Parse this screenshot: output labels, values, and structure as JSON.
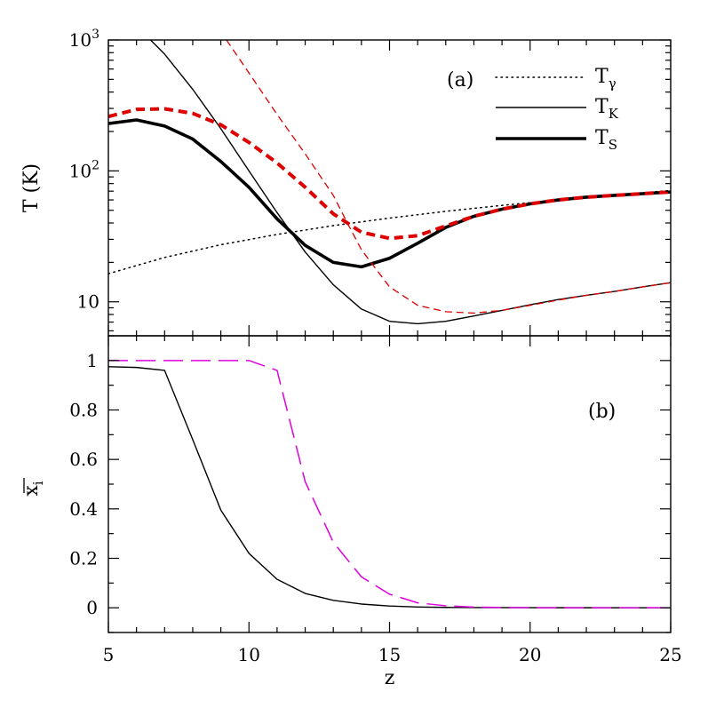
{
  "chart_data": [
    {
      "type": "line",
      "panel_label": "(a)",
      "xlabel": "z",
      "ylabel": "T  (K)",
      "xlim": [
        5,
        25
      ],
      "ylim": [
        5.5,
        1000
      ],
      "yscale": "log",
      "xticks": [
        5,
        10,
        15,
        20,
        25
      ],
      "yticks": [
        {
          "value": 10,
          "label": "10",
          "sup": ""
        },
        {
          "value": 100,
          "label": "10",
          "sup": "2"
        },
        {
          "value": 1000,
          "label": "10",
          "sup": "3"
        }
      ],
      "legend": {
        "position": "top-right",
        "entries": [
          {
            "main": "T",
            "sub": "γ",
            "style": "dotted"
          },
          {
            "main": "T",
            "sub": "K",
            "style": "thin"
          },
          {
            "main": "T",
            "sub": "S",
            "style": "thick"
          }
        ]
      },
      "series": [
        {
          "key": "T_gamma",
          "style": "dotted",
          "color": "#000000",
          "x": [
            5,
            7,
            9,
            11,
            13,
            15,
            17,
            19,
            21,
            23,
            25
          ],
          "y": [
            16.4,
            21.8,
            27.3,
            32.7,
            38.2,
            43.6,
            49.1,
            54.5,
            60.0,
            65.4,
            70.9
          ]
        },
        {
          "key": "T_K",
          "style": "thin",
          "color": "#000000",
          "x": [
            6.5,
            7,
            8,
            9,
            10,
            11,
            12,
            13,
            14,
            15,
            16,
            17,
            18,
            19,
            20,
            21,
            22,
            23,
            24,
            25
          ],
          "y": [
            1000,
            780,
            420,
            210,
            100,
            48,
            24,
            13.5,
            8.8,
            7.1,
            6.8,
            7.1,
            7.8,
            8.6,
            9.5,
            10.4,
            11.2,
            12.0,
            13.0,
            14.0
          ]
        },
        {
          "key": "T_S",
          "style": "thick",
          "color": "#000000",
          "x": [
            5,
            6,
            7,
            8,
            9,
            10,
            11,
            12,
            13,
            14,
            15,
            16,
            17,
            18,
            19,
            20,
            21,
            22,
            23,
            24,
            25
          ],
          "y": [
            230,
            245,
            220,
            175,
            118,
            75,
            43,
            27,
            20,
            18.5,
            21.5,
            28,
            37,
            45,
            51,
            56,
            60,
            63,
            65,
            67,
            69
          ]
        },
        {
          "key": "T_K_red",
          "style": "thin-dashed",
          "color": "#dd0000",
          "x": [
            13.5,
            14,
            15,
            16,
            17,
            18,
            19,
            20,
            21,
            22,
            23,
            24,
            25
          ],
          "y": [
            40,
            25,
            13,
            9.4,
            8.4,
            8.2,
            8.6,
            9.4,
            10.3,
            11.2,
            12.0,
            13.0,
            14.0
          ],
          "x_upper": [
            9.2,
            10,
            11,
            12,
            13,
            13.5
          ],
          "y_upper": [
            1000,
            560,
            270,
            135,
            65,
            40
          ]
        },
        {
          "key": "T_S_red",
          "style": "thick-dashed",
          "color": "#dd0000",
          "x": [
            5,
            6,
            7,
            8,
            9,
            10,
            11,
            12,
            13,
            14,
            15,
            16,
            17,
            18,
            19,
            20,
            21,
            22,
            23,
            24,
            25
          ],
          "y": [
            260,
            295,
            298,
            275,
            225,
            165,
            115,
            75,
            47,
            34,
            30.5,
            32,
            38,
            45,
            51,
            56,
            60,
            63,
            65,
            67,
            69
          ]
        }
      ]
    },
    {
      "type": "line",
      "panel_label": "(b)",
      "xlabel": "z",
      "ylabel": "x",
      "ylabel_sub": "i",
      "xlim": [
        5,
        25
      ],
      "ylim": [
        -0.1,
        1.1
      ],
      "xticks": [
        5,
        10,
        15,
        20,
        25
      ],
      "yticks": [
        0,
        0.2,
        0.4,
        0.6,
        0.8,
        1
      ],
      "ytick_labels": [
        "0",
        "0.2",
        "0.4",
        "0.6",
        "0.8",
        "1"
      ],
      "series": [
        {
          "key": "x_black",
          "style": "thin",
          "color": "#000000",
          "x": [
            5,
            6,
            7,
            8,
            9,
            10,
            11,
            12,
            13,
            14,
            15,
            16,
            17,
            18,
            20,
            25
          ],
          "y": [
            0.975,
            0.972,
            0.96,
            0.68,
            0.395,
            0.22,
            0.115,
            0.058,
            0.03,
            0.015,
            0.007,
            0.003,
            0.0015,
            0.0008,
            0.0002,
            0
          ]
        },
        {
          "key": "x_magenta",
          "style": "long-dashed",
          "color": "#dd00dd",
          "x": [
            5,
            10,
            11,
            12,
            13,
            14,
            15,
            16,
            17,
            18,
            19,
            20,
            25
          ],
          "y": [
            1,
            1,
            0.96,
            0.51,
            0.265,
            0.125,
            0.055,
            0.02,
            0.008,
            0.003,
            0.001,
            0.0004,
            0
          ]
        }
      ]
    }
  ]
}
